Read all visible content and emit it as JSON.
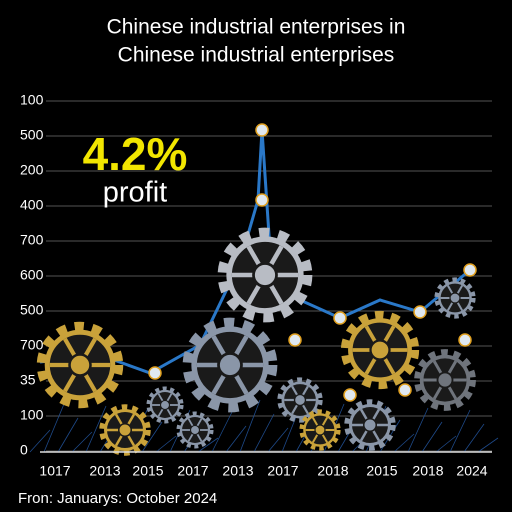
{
  "header": {
    "title_lines": [
      "Chinese industrial enterprises in",
      "Chinese industrial enterprises"
    ]
  },
  "y_axis_labels": [
    "100",
    "500",
    "200",
    "400",
    "700",
    "600",
    "500",
    "700",
    "35",
    "100",
    "0"
  ],
  "x_axis_labels": [
    "1017",
    "2013",
    "2015",
    "2017",
    "2013",
    "2017",
    "2018",
    "2015",
    "2018",
    "2024"
  ],
  "callout": {
    "figure": "4.2%",
    "caption": "profit"
  },
  "footer": {
    "source": "Fron: Januarys: October 2024"
  }
}
